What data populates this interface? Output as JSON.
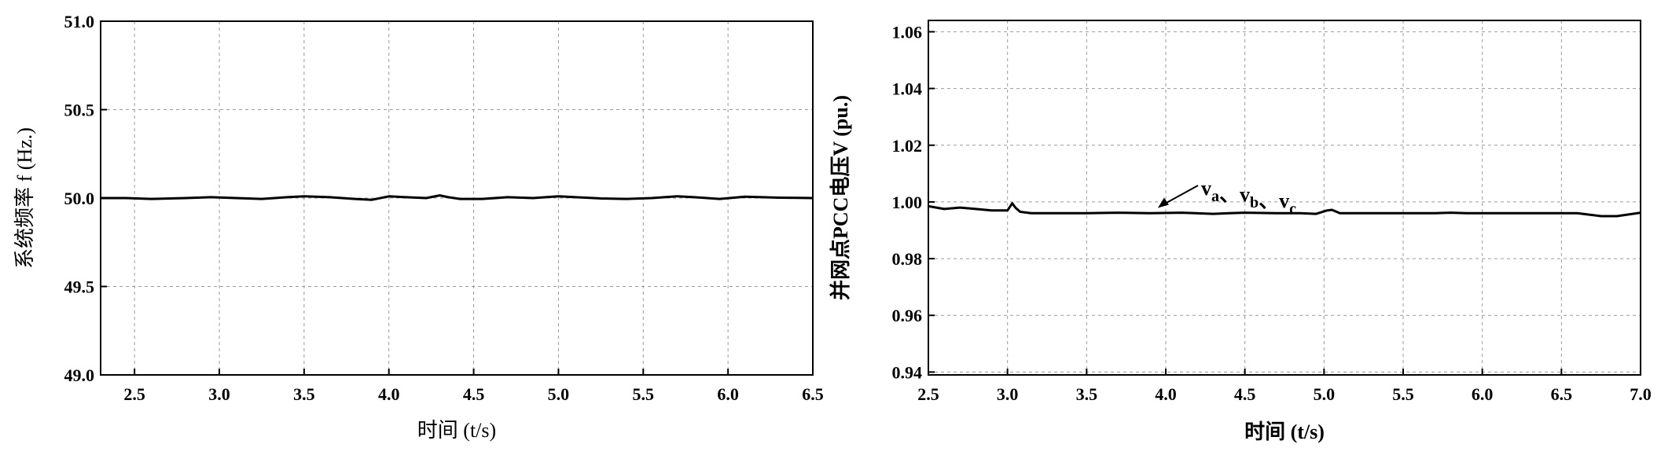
{
  "chart_data": [
    {
      "type": "line",
      "title": "",
      "xlabel": "时间 (t/s)",
      "ylabel": "系统频率 f (Hz.)",
      "xlim": [
        2.3,
        6.5
      ],
      "ylim": [
        49.0,
        51.0
      ],
      "xticks": [
        "2.5",
        "3.0",
        "3.5",
        "4.0",
        "4.5",
        "5.0",
        "5.5",
        "6.0",
        "6.5"
      ],
      "yticks": [
        "49.0",
        "49.5",
        "50.0",
        "50.5",
        "51.0"
      ],
      "grid": true,
      "series": [
        {
          "x": [
            2.3,
            2.45,
            2.6,
            2.8,
            2.95,
            3.1,
            3.25,
            3.4,
            3.5,
            3.65,
            3.8,
            3.9,
            4.0,
            4.1,
            4.22,
            4.3,
            4.35,
            4.42,
            4.55,
            4.7,
            4.85,
            5.0,
            5.1,
            5.25,
            5.4,
            5.55,
            5.7,
            5.8,
            5.95,
            6.1,
            6.3,
            6.5
          ],
          "y": [
            50.0,
            50.0,
            49.995,
            50.0,
            50.005,
            50.0,
            49.995,
            50.005,
            50.01,
            50.005,
            49.995,
            49.99,
            50.01,
            50.005,
            50.0,
            50.015,
            50.005,
            49.995,
            49.995,
            50.005,
            50.0,
            50.01,
            50.005,
            49.998,
            49.995,
            50.0,
            50.01,
            50.005,
            49.995,
            50.008,
            50.002,
            50.0
          ]
        }
      ]
    },
    {
      "type": "line",
      "title": "",
      "xlabel": "时间 (t/s)",
      "ylabel": "并网点PCC电压V (pu.)",
      "xlim": [
        2.5,
        7.0
      ],
      "ylim": [
        0.939,
        1.064
      ],
      "xticks": [
        "2.5",
        "3.0",
        "3.5",
        "4.0",
        "4.5",
        "5.0",
        "5.5",
        "6.0",
        "6.5",
        "7.0"
      ],
      "yticks": [
        "0.94",
        "0.96",
        "0.98",
        "1.00",
        "1.02",
        "1.04",
        "1.06"
      ],
      "grid": true,
      "annotation": {
        "parts": [
          {
            "base": "v",
            "sub": "a"
          },
          {
            "base": "、v",
            "sub": "b"
          },
          {
            "base": "、v",
            "sub": "c"
          }
        ],
        "points_to": [
          3.95,
          0.9965
        ]
      },
      "series": [
        {
          "x": [
            2.5,
            2.55,
            2.6,
            2.7,
            2.8,
            2.9,
            2.95,
            3.0,
            3.03,
            3.05,
            3.08,
            3.15,
            3.3,
            3.5,
            3.7,
            3.9,
            4.1,
            4.3,
            4.4,
            4.5,
            4.7,
            4.85,
            4.95,
            5.02,
            5.05,
            5.1,
            5.3,
            5.5,
            5.7,
            5.8,
            5.9,
            6.0,
            6.2,
            6.4,
            6.6,
            6.75,
            6.85,
            6.95,
            7.0
          ],
          "y": [
            0.9985,
            0.998,
            0.9975,
            0.998,
            0.9975,
            0.997,
            0.997,
            0.997,
            0.9995,
            0.998,
            0.9965,
            0.996,
            0.996,
            0.996,
            0.9962,
            0.996,
            0.9962,
            0.9958,
            0.996,
            0.9962,
            0.996,
            0.996,
            0.9958,
            0.997,
            0.9972,
            0.996,
            0.996,
            0.996,
            0.996,
            0.9962,
            0.996,
            0.996,
            0.996,
            0.996,
            0.996,
            0.995,
            0.995,
            0.9958,
            0.9962
          ]
        }
      ]
    }
  ]
}
